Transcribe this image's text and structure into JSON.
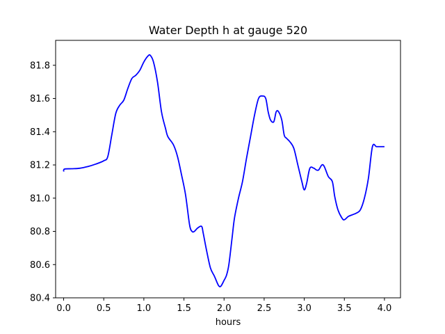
{
  "chart_data": {
    "type": "line",
    "title": "Water Depth h at gauge 520",
    "xlabel": "hours",
    "ylabel": "",
    "xlim": [
      -0.1,
      4.2
    ],
    "ylim": [
      80.4,
      81.95
    ],
    "xticks": [
      0.0,
      0.5,
      1.0,
      1.5,
      2.0,
      2.5,
      3.0,
      3.5,
      4.0
    ],
    "xtick_labels": [
      "0.0",
      "0.5",
      "1.0",
      "1.5",
      "2.0",
      "2.5",
      "3.0",
      "3.5",
      "4.0"
    ],
    "yticks": [
      80.4,
      80.6,
      80.8,
      81.0,
      81.2,
      81.4,
      81.6,
      81.8
    ],
    "ytick_labels": [
      "80.4",
      "80.6",
      "80.8",
      "81.0",
      "81.2",
      "81.4",
      "81.6",
      "81.8"
    ],
    "grid": false,
    "series": [
      {
        "color": "#0000ff",
        "x": [
          0.0,
          0.01,
          0.1,
          0.2,
          0.3,
          0.4,
          0.5,
          0.55,
          0.6,
          0.65,
          0.7,
          0.75,
          0.8,
          0.85,
          0.9,
          0.95,
          1.0,
          1.05,
          1.08,
          1.12,
          1.17,
          1.22,
          1.27,
          1.3,
          1.37,
          1.42,
          1.47,
          1.52,
          1.57,
          1.6,
          1.63,
          1.67,
          1.72,
          1.74,
          1.78,
          1.83,
          1.88,
          1.93,
          1.96,
          2.0,
          2.03,
          2.06,
          2.1,
          2.13,
          2.18,
          2.23,
          2.28,
          2.33,
          2.38,
          2.43,
          2.48,
          2.52,
          2.55,
          2.58,
          2.62,
          2.65,
          2.68,
          2.72,
          2.75,
          2.78,
          2.82,
          2.87,
          2.92,
          2.97,
          3.0,
          3.03,
          3.07,
          3.12,
          3.15,
          3.18,
          3.22,
          3.25,
          3.3,
          3.35,
          3.38,
          3.42,
          3.47,
          3.5,
          3.55,
          3.6,
          3.65,
          3.7,
          3.75,
          3.8,
          3.85,
          3.9,
          3.95,
          4.0
        ],
        "y": [
          81.16,
          81.175,
          81.177,
          81.18,
          81.19,
          81.205,
          81.225,
          81.25,
          81.38,
          81.51,
          81.56,
          81.59,
          81.66,
          81.72,
          81.74,
          81.77,
          81.82,
          81.855,
          81.86,
          81.82,
          81.7,
          81.52,
          81.42,
          81.37,
          81.32,
          81.25,
          81.14,
          81.02,
          80.84,
          80.8,
          80.8,
          80.82,
          80.83,
          80.79,
          80.69,
          80.58,
          80.53,
          80.475,
          80.47,
          80.505,
          80.535,
          80.6,
          80.76,
          80.88,
          81.0,
          81.1,
          81.24,
          81.37,
          81.5,
          81.6,
          81.615,
          81.6,
          81.52,
          81.47,
          81.46,
          81.52,
          81.52,
          81.47,
          81.38,
          81.36,
          81.34,
          81.3,
          81.2,
          81.1,
          81.05,
          81.09,
          81.18,
          81.18,
          81.17,
          81.17,
          81.2,
          81.19,
          81.13,
          81.1,
          81.01,
          80.93,
          80.88,
          80.87,
          80.89,
          80.9,
          80.91,
          80.93,
          81.0,
          81.12,
          81.31,
          81.31,
          81.31,
          81.31
        ]
      }
    ]
  }
}
